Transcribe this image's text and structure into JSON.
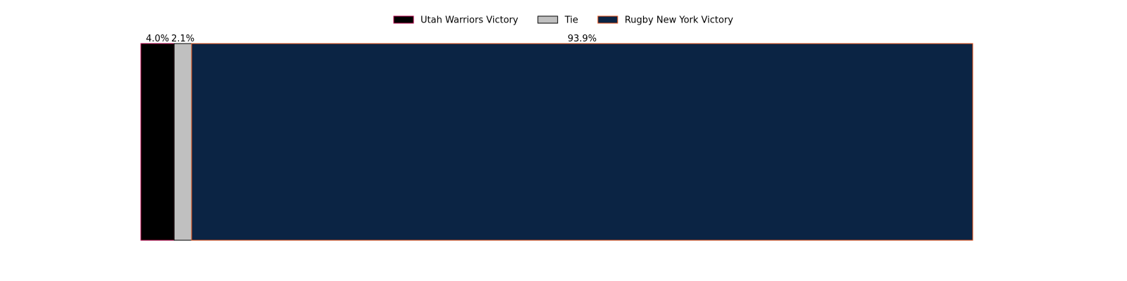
{
  "chart_data": {
    "type": "bar",
    "orientation": "horizontal-stacked",
    "categories": [
      ""
    ],
    "series": [
      {
        "name": "Utah Warriors Victory",
        "values": [
          4.0
        ],
        "label": "4.0%",
        "color": "#000000",
        "edge": "#b5004a"
      },
      {
        "name": "Tie",
        "values": [
          2.1
        ],
        "label": "2.1%",
        "color": "#c0c0c0",
        "edge": "#000000"
      },
      {
        "name": "Rugby New York Victory",
        "values": [
          93.9
        ],
        "label": "93.9%",
        "color": "#0b2444",
        "edge": "#e8561d"
      }
    ],
    "xlim": [
      0,
      100
    ],
    "axes_visible": false,
    "grid": false,
    "legend_position": "top-center"
  }
}
